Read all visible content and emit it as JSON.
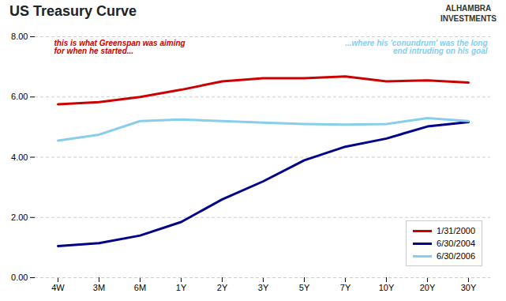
{
  "chart_data": {
    "type": "line",
    "title": "US Treasury Curve",
    "categories": [
      "4W",
      "3M",
      "6M",
      "1Y",
      "2Y",
      "3Y",
      "5Y",
      "7Y",
      "10Y",
      "20Y",
      "30Y"
    ],
    "series": [
      {
        "name": "1/31/2000",
        "color": "#CC0000",
        "values": [
          5.76,
          5.83,
          6.0,
          6.24,
          6.52,
          6.62,
          6.62,
          6.68,
          6.52,
          6.55,
          6.48
        ]
      },
      {
        "name": "6/30/2004",
        "color": "#00008B",
        "values": [
          1.05,
          1.15,
          1.4,
          1.85,
          2.6,
          3.2,
          3.9,
          4.35,
          4.62,
          5.02,
          5.17
        ]
      },
      {
        "name": "6/30/2006",
        "color": "#87CEEB",
        "values": [
          4.55,
          4.75,
          5.2,
          5.25,
          5.2,
          5.15,
          5.1,
          5.08,
          5.1,
          5.3,
          5.2
        ]
      }
    ],
    "ylim": [
      0,
      8.0
    ],
    "yticks": [
      {
        "value": 0,
        "label": "0.00"
      },
      {
        "value": 2,
        "label": "2.00"
      },
      {
        "value": 4,
        "label": "4.00"
      },
      {
        "value": 6,
        "label": "6.00"
      },
      {
        "value": 8,
        "label": "8.00"
      }
    ],
    "grid": true,
    "legend": "lower right",
    "annotations": [
      {
        "text": "this is what Greenspan was aiming\nfor when he started...",
        "color": "#CC0000"
      },
      {
        "text": "...where his 'conundrum' was the long\nend intruding on his goal",
        "color": "#87CEEB"
      },
      {
        "text": "ALHAMBRA\nINVESTMENTS",
        "color": "#333333"
      }
    ]
  }
}
